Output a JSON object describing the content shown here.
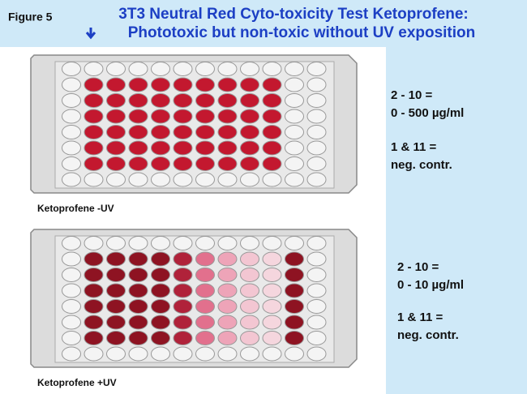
{
  "header": {
    "figure": "Figure 5",
    "title_lines": [
      "3T3 Neutral Red Cyto-toxicity Test Ketoprofene:",
      "Phototoxic but non-toxic without UV exposition"
    ]
  },
  "plates": [
    {
      "caption": "Ketoprofene -UV",
      "notes": [
        "2 - 10 =",
        "0 - 500 µg/ml",
        "1 & 11 =",
        "neg. contr."
      ]
    },
    {
      "caption": "Ketoprofene +UV",
      "notes": [
        "2 - 10 =",
        "0 - 10 µg/ml",
        "1 & 11 =",
        "neg. contr."
      ]
    }
  ]
}
